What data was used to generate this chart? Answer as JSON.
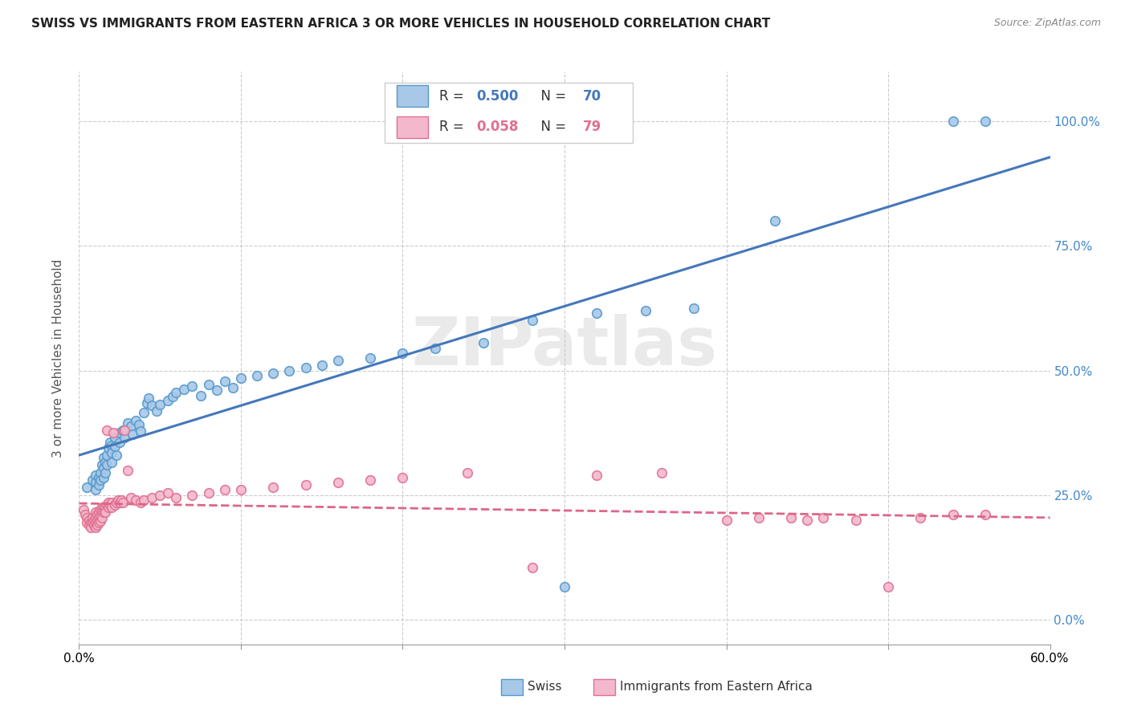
{
  "title": "SWISS VS IMMIGRANTS FROM EASTERN AFRICA 3 OR MORE VEHICLES IN HOUSEHOLD CORRELATION CHART",
  "source": "Source: ZipAtlas.com",
  "ylabel": "3 or more Vehicles in Household",
  "swiss_R": "0.500",
  "swiss_N": "70",
  "immigrant_R": "0.058",
  "immigrant_N": "79",
  "swiss_color": "#a8c8e8",
  "swiss_edge_color": "#5599cc",
  "immigrant_color": "#f4b8cc",
  "immigrant_edge_color": "#e07090",
  "swiss_line_color": "#4477bb",
  "immigrant_line_color": "#dd6688",
  "right_axis_color": "#4488cc",
  "legend_swiss_label": "Swiss",
  "legend_immigrant_label": "Immigrants from Eastern Africa",
  "watermark": "ZIPatlas",
  "xlim": [
    0.0,
    0.6
  ],
  "ylim": [
    -0.05,
    1.1
  ],
  "x_ticks": [
    0.0,
    0.1,
    0.2,
    0.3,
    0.4,
    0.5,
    0.6
  ],
  "y_ticks": [
    0.0,
    0.25,
    0.5,
    0.75,
    1.0
  ],
  "swiss_x": [
    0.005,
    0.008,
    0.01,
    0.01,
    0.01,
    0.012,
    0.012,
    0.013,
    0.013,
    0.014,
    0.015,
    0.015,
    0.015,
    0.016,
    0.016,
    0.017,
    0.017,
    0.018,
    0.019,
    0.02,
    0.02,
    0.02,
    0.022,
    0.022,
    0.023,
    0.025,
    0.025,
    0.027,
    0.028,
    0.03,
    0.032,
    0.033,
    0.035,
    0.037,
    0.038,
    0.04,
    0.042,
    0.043,
    0.045,
    0.048,
    0.05,
    0.055,
    0.058,
    0.06,
    0.065,
    0.07,
    0.075,
    0.08,
    0.085,
    0.09,
    0.095,
    0.1,
    0.11,
    0.12,
    0.13,
    0.14,
    0.15,
    0.16,
    0.18,
    0.2,
    0.22,
    0.25,
    0.28,
    0.3,
    0.32,
    0.35,
    0.38,
    0.43,
    0.54,
    0.56
  ],
  "swiss_y": [
    0.265,
    0.28,
    0.29,
    0.275,
    0.26,
    0.285,
    0.27,
    0.295,
    0.28,
    0.31,
    0.325,
    0.305,
    0.285,
    0.315,
    0.295,
    0.33,
    0.31,
    0.345,
    0.355,
    0.35,
    0.335,
    0.315,
    0.365,
    0.348,
    0.33,
    0.375,
    0.355,
    0.38,
    0.365,
    0.395,
    0.388,
    0.372,
    0.4,
    0.392,
    0.378,
    0.415,
    0.435,
    0.445,
    0.43,
    0.418,
    0.432,
    0.44,
    0.448,
    0.455,
    0.462,
    0.468,
    0.45,
    0.472,
    0.46,
    0.478,
    0.465,
    0.485,
    0.49,
    0.495,
    0.5,
    0.505,
    0.51,
    0.52,
    0.525,
    0.535,
    0.545,
    0.555,
    0.6,
    0.065,
    0.615,
    0.62,
    0.625,
    0.8,
    1.0,
    1.0
  ],
  "immigrant_x": [
    0.003,
    0.004,
    0.005,
    0.005,
    0.006,
    0.006,
    0.007,
    0.007,
    0.008,
    0.008,
    0.009,
    0.009,
    0.01,
    0.01,
    0.01,
    0.01,
    0.011,
    0.011,
    0.011,
    0.012,
    0.012,
    0.012,
    0.013,
    0.013,
    0.013,
    0.014,
    0.014,
    0.014,
    0.015,
    0.015,
    0.016,
    0.016,
    0.017,
    0.017,
    0.018,
    0.018,
    0.019,
    0.02,
    0.02,
    0.021,
    0.022,
    0.023,
    0.024,
    0.025,
    0.026,
    0.027,
    0.028,
    0.03,
    0.032,
    0.035,
    0.038,
    0.04,
    0.045,
    0.05,
    0.055,
    0.06,
    0.07,
    0.08,
    0.09,
    0.1,
    0.12,
    0.14,
    0.16,
    0.18,
    0.2,
    0.24,
    0.28,
    0.32,
    0.36,
    0.4,
    0.42,
    0.44,
    0.45,
    0.46,
    0.48,
    0.5,
    0.52,
    0.54,
    0.56
  ],
  "immigrant_y": [
    0.22,
    0.21,
    0.205,
    0.195,
    0.2,
    0.19,
    0.195,
    0.185,
    0.205,
    0.195,
    0.2,
    0.19,
    0.215,
    0.205,
    0.195,
    0.185,
    0.21,
    0.2,
    0.19,
    0.215,
    0.205,
    0.195,
    0.22,
    0.208,
    0.198,
    0.225,
    0.215,
    0.205,
    0.225,
    0.215,
    0.225,
    0.215,
    0.38,
    0.23,
    0.235,
    0.225,
    0.23,
    0.235,
    0.225,
    0.375,
    0.23,
    0.235,
    0.24,
    0.235,
    0.24,
    0.235,
    0.38,
    0.3,
    0.245,
    0.24,
    0.235,
    0.24,
    0.245,
    0.25,
    0.255,
    0.245,
    0.25,
    0.255,
    0.26,
    0.26,
    0.265,
    0.27,
    0.275,
    0.28,
    0.285,
    0.295,
    0.105,
    0.29,
    0.295,
    0.2,
    0.205,
    0.205,
    0.2,
    0.205,
    0.2,
    0.065,
    0.205,
    0.21,
    0.21
  ]
}
